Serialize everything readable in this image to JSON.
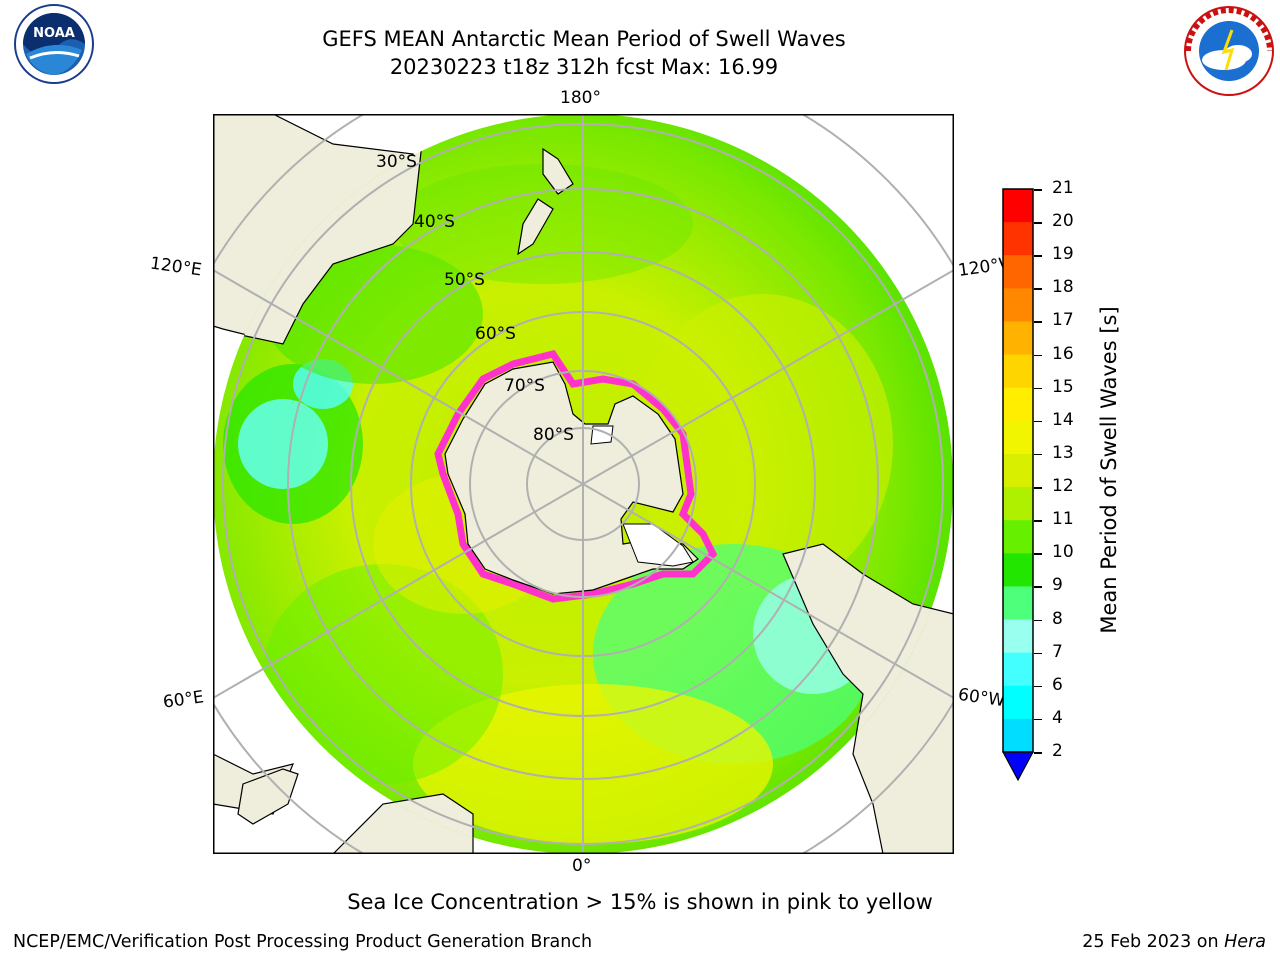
{
  "header": {
    "title_line1": "GEFS MEAN Antarctic Mean Period of Swell Waves",
    "title_line2": "20230223 t18z 312h fcst   Max: 16.99"
  },
  "map": {
    "longitude_labels": {
      "top": "180°",
      "bottom": "0°",
      "upper_left": "120°E",
      "upper_right": "120°W",
      "lower_left": "60°E",
      "lower_right": "60°W"
    },
    "latitude_labels": [
      "30°S",
      "40°S",
      "50°S",
      "60°S",
      "70°S",
      "80°S"
    ],
    "colors": {
      "land": "#efeedc",
      "ocean_outside": "#ffffff",
      "gridline": "#b0b0b0",
      "sea_ice_edge": "#ff33cc"
    }
  },
  "colorbar": {
    "title": "Mean Period of Swell Waves [s]",
    "ticks": [
      "21",
      "20",
      "19",
      "18",
      "17",
      "16",
      "15",
      "14",
      "13",
      "12",
      "11",
      "10",
      "9",
      "8",
      "7",
      "6",
      "4",
      "2"
    ],
    "colors": [
      "#ff0000",
      "#ff3300",
      "#ff6600",
      "#ff8800",
      "#ffb300",
      "#ffd500",
      "#ffee00",
      "#f2f500",
      "#d8f000",
      "#aef000",
      "#66f000",
      "#22e600",
      "#4dff7a",
      "#99ffee",
      "#44ffff",
      "#00ffff",
      "#00ddff",
      "#0088ff",
      "#0000ff"
    ]
  },
  "footer": {
    "note": "Sea Ice Concentration > 15% is shown in pink to yellow",
    "left": "NCEP/EMC/Verification Post Processing Product Generation Branch",
    "right_date": "25 Feb 2023 on ",
    "right_host": "Hera"
  },
  "logos": {
    "noaa_text": "NOAA",
    "nws_text": "NATIONAL WEATHER SERVICE"
  }
}
